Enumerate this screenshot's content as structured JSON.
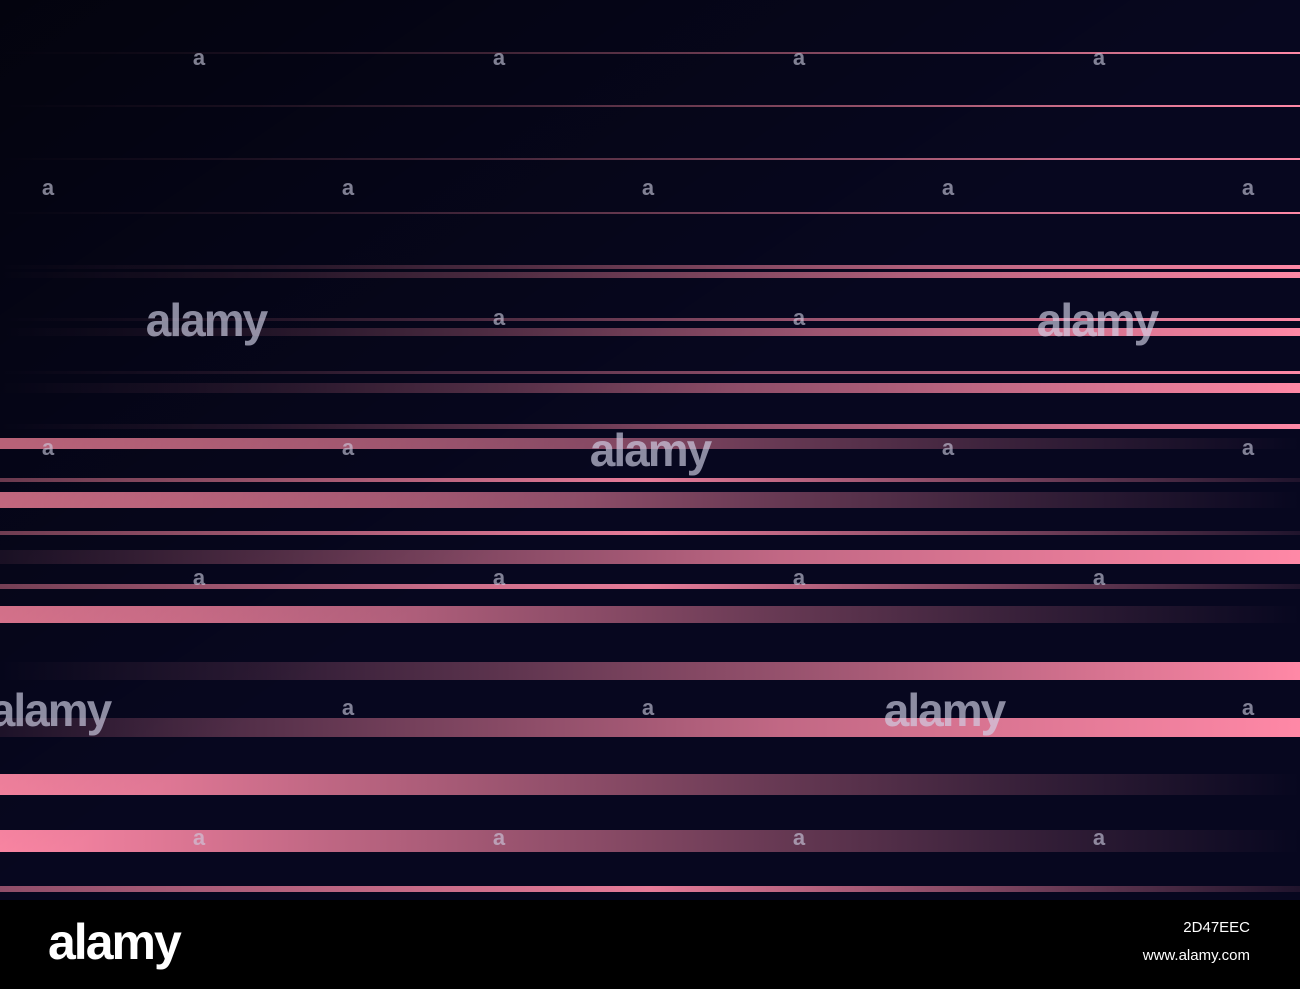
{
  "artwork": {
    "background_color": "#07071f",
    "stripe_color": "#ff88a6",
    "fade_color": "#000000"
  },
  "watermark": {
    "glyph": "a",
    "word": "alamy"
  },
  "footer": {
    "logo": "alamy",
    "image_id": "2D47EEC",
    "url": "www.alamy.com"
  }
}
